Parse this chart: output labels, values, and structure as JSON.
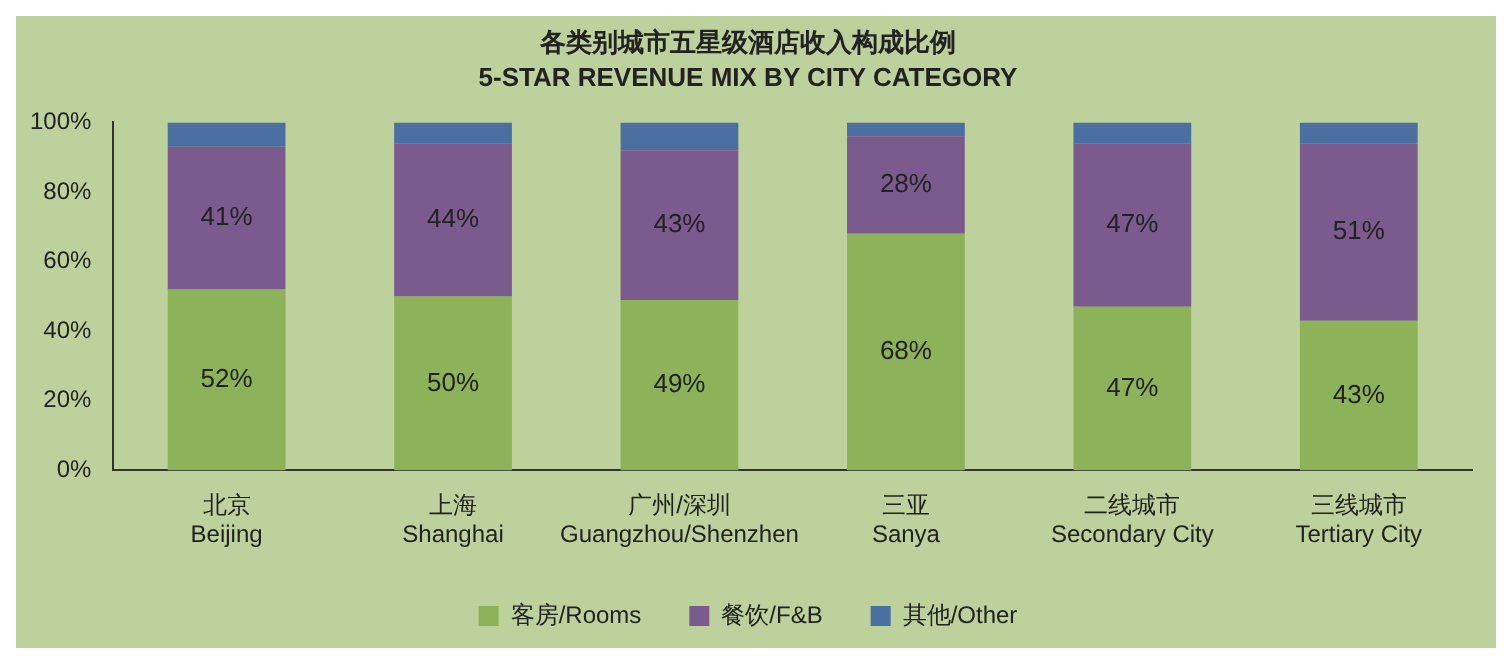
{
  "chart_data": {
    "type": "bar",
    "title": "各类别城市五星级酒店收入构成比例",
    "subtitle": "5-STAR REVENUE MIX BY CITY CATEGORY",
    "categories": [
      "北京\nBeijing",
      "上海\nShanghai",
      "广州/深圳\nGuangzhou/Shenzhen",
      "三亚\nSanya",
      "二线城市\nSecondary City",
      "三线城市\nTertiary City"
    ],
    "stacked": true,
    "series": [
      {
        "name": "客房/Rooms",
        "color": "#8db35a",
        "values": [
          52,
          50,
          49,
          68,
          47,
          43
        ],
        "value_labels": [
          "52%",
          "50%",
          "49%",
          "68%",
          "47%",
          "43%"
        ]
      },
      {
        "name": "餐饮/F&B",
        "color": "#7b5a8e",
        "values": [
          41,
          44,
          43,
          28,
          47,
          51
        ],
        "value_labels": [
          "41%",
          "44%",
          "43%",
          "28%",
          "47%",
          "51%"
        ]
      },
      {
        "name": "其他/Other",
        "color": "#4a6fa0",
        "values": [
          7,
          6,
          8,
          4,
          6,
          6
        ]
      }
    ],
    "ylim": [
      0,
      100
    ],
    "yticks": [
      {
        "value": 0,
        "label": "0%"
      },
      {
        "value": 20,
        "label": "20%"
      },
      {
        "value": 40,
        "label": "40%"
      },
      {
        "value": 60,
        "label": "60%"
      },
      {
        "value": 80,
        "label": "80%"
      },
      {
        "value": 100,
        "label": "100%"
      }
    ],
    "grid": false,
    "legend": "bottom"
  }
}
